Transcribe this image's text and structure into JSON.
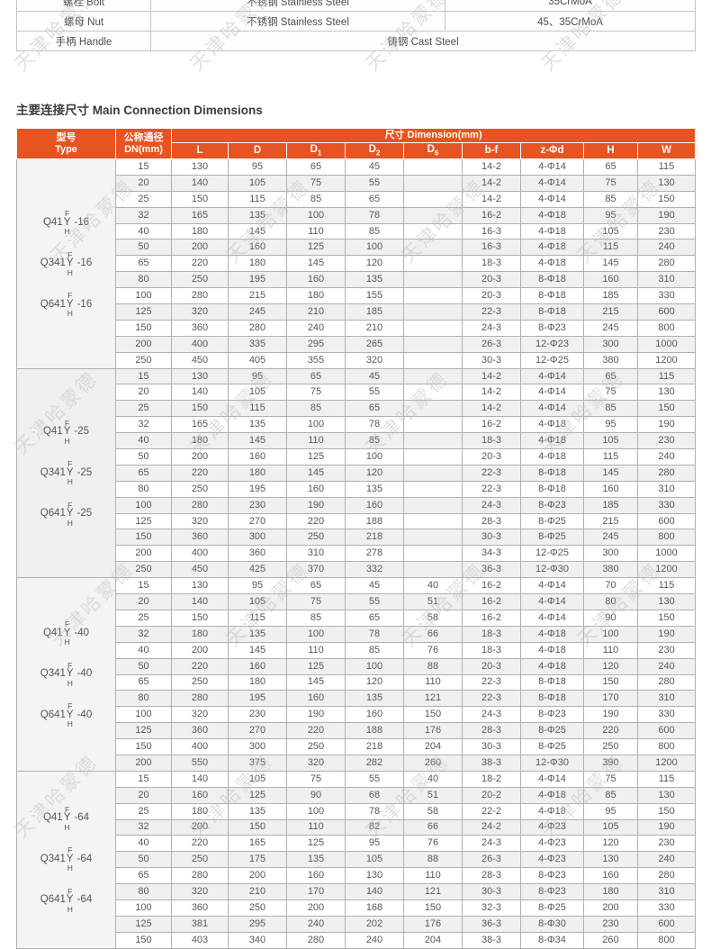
{
  "watermark": {
    "text": "天津哈蒙德"
  },
  "colors": {
    "accent_orange": "#E85322",
    "row_stripe": "#F0F0F0",
    "table_border": "#B0B0B0",
    "body_text": "#58585A",
    "watermark_gray": "#BFBFBF"
  },
  "materials": {
    "rows": [
      [
        {
          "t": "螺栓 Bolt"
        },
        {
          "t": "不锈钢 Stainless Steel"
        },
        {
          "t": "35CrMoA"
        }
      ],
      [
        {
          "t": "螺母 Nut"
        },
        {
          "t": "不锈钢 Stainless Steel"
        },
        {
          "t": "45、35CrMoA"
        }
      ],
      [
        {
          "t": "手柄 Handle"
        },
        {
          "t": "铸钢 Cast Steel",
          "colspan": 2
        }
      ]
    ]
  },
  "section_title": "主要连接尺寸 Main Connection Dimensions",
  "table": {
    "header": {
      "type_line1": "型号",
      "type_line2": "Type",
      "dn_line1": "公称通径",
      "dn_line2": "DN(mm)",
      "dimension_group": "尺寸 Dimension(mm)",
      "dims": [
        "L",
        "D",
        {
          "base": "D",
          "sub": "1"
        },
        {
          "base": "D",
          "sub": "2"
        },
        {
          "base": "D",
          "sub": "6"
        },
        "b-f",
        "z-Φd",
        "H",
        "W"
      ]
    },
    "groups": [
      {
        "models": [
          {
            "prefix": "Q41",
            "letters": [
              "F",
              "Y",
              "H"
            ],
            "suffix": "-16"
          },
          {
            "prefix": "Q341",
            "letters": [
              "F",
              "Y",
              "H"
            ],
            "suffix": "-16"
          },
          {
            "prefix": "Q641",
            "letters": [
              "F",
              "Y",
              "H"
            ],
            "suffix": "-16"
          }
        ],
        "rows": [
          {
            "dn": "15",
            "values": [
              "130",
              "95",
              "65",
              "45",
              "",
              "14-2",
              "4-Φ14",
              "65",
              "115"
            ]
          },
          {
            "dn": "20",
            "values": [
              "140",
              "105",
              "75",
              "55",
              "",
              "14-2",
              "4-Φ14",
              "75",
              "130"
            ]
          },
          {
            "dn": "25",
            "values": [
              "150",
              "115",
              "85",
              "65",
              "",
              "14-2",
              "4-Φ14",
              "85",
              "150"
            ]
          },
          {
            "dn": "32",
            "values": [
              "165",
              "135",
              "100",
              "78",
              "",
              "16-2",
              "4-Φ18",
              "95",
              "190"
            ]
          },
          {
            "dn": "40",
            "values": [
              "180",
              "145",
              "110",
              "85",
              "",
              "16-3",
              "4-Φ18",
              "105",
              "230"
            ]
          },
          {
            "dn": "50",
            "values": [
              "200",
              "160",
              "125",
              "100",
              "",
              "16-3",
              "4-Φ18",
              "115",
              "240"
            ]
          },
          {
            "dn": "65",
            "values": [
              "220",
              "180",
              "145",
              "120",
              "",
              "18-3",
              "4-Φ18",
              "145",
              "280"
            ]
          },
          {
            "dn": "80",
            "values": [
              "250",
              "195",
              "160",
              "135",
              "",
              "20-3",
              "8-Φ18",
              "160",
              "310"
            ]
          },
          {
            "dn": "100",
            "values": [
              "280",
              "215",
              "180",
              "155",
              "",
              "20-3",
              "8-Φ18",
              "185",
              "330"
            ]
          },
          {
            "dn": "125",
            "values": [
              "320",
              "245",
              "210",
              "185",
              "",
              "22-3",
              "8-Φ18",
              "215",
              "600"
            ]
          },
          {
            "dn": "150",
            "values": [
              "360",
              "280",
              "240",
              "210",
              "",
              "24-3",
              "8-Φ23",
              "245",
              "800"
            ]
          },
          {
            "dn": "200",
            "values": [
              "400",
              "335",
              "295",
              "265",
              "",
              "26-3",
              "12-Φ23",
              "300",
              "1000"
            ]
          },
          {
            "dn": "250",
            "values": [
              "450",
              "405",
              "355",
              "320",
              "",
              "30-3",
              "12-Φ25",
              "380",
              "1200"
            ]
          }
        ]
      },
      {
        "models": [
          {
            "prefix": "Q41",
            "letters": [
              "F",
              "Y",
              "H"
            ],
            "suffix": "-25"
          },
          {
            "prefix": "Q341",
            "letters": [
              "F",
              "Y",
              "H"
            ],
            "suffix": "-25"
          },
          {
            "prefix": "Q641",
            "letters": [
              "F",
              "Y",
              "H"
            ],
            "suffix": "-25"
          }
        ],
        "rows": [
          {
            "dn": "15",
            "values": [
              "130",
              "95",
              "65",
              "45",
              "",
              "14-2",
              "4-Φ14",
              "65",
              "115"
            ]
          },
          {
            "dn": "20",
            "values": [
              "140",
              "105",
              "75",
              "55",
              "",
              "14-2",
              "4-Φ14",
              "75",
              "130"
            ]
          },
          {
            "dn": "25",
            "values": [
              "150",
              "115",
              "85",
              "65",
              "",
              "14-2",
              "4-Φ14",
              "85",
              "150"
            ]
          },
          {
            "dn": "32",
            "values": [
              "165",
              "135",
              "100",
              "78",
              "",
              "16-2",
              "4-Φ18",
              "95",
              "190"
            ]
          },
          {
            "dn": "40",
            "values": [
              "180",
              "145",
              "110",
              "85",
              "",
              "18-3",
              "4-Φ18",
              "105",
              "230"
            ]
          },
          {
            "dn": "50",
            "values": [
              "200",
              "160",
              "125",
              "100",
              "",
              "20-3",
              "4-Φ18",
              "115",
              "240"
            ]
          },
          {
            "dn": "65",
            "values": [
              "220",
              "180",
              "145",
              "120",
              "",
              "22-3",
              "8-Φ18",
              "145",
              "280"
            ]
          },
          {
            "dn": "80",
            "values": [
              "250",
              "195",
              "160",
              "135",
              "",
              "22-3",
              "8-Φ18",
              "160",
              "310"
            ]
          },
          {
            "dn": "100",
            "values": [
              "280",
              "230",
              "190",
              "160",
              "",
              "24-3",
              "8-Φ23",
              "185",
              "330"
            ]
          },
          {
            "dn": "125",
            "values": [
              "320",
              "270",
              "220",
              "188",
              "",
              "28-3",
              "8-Φ25",
              "215",
              "600"
            ]
          },
          {
            "dn": "150",
            "values": [
              "360",
              "300",
              "250",
              "218",
              "",
              "30-3",
              "8-Φ25",
              "245",
              "800"
            ]
          },
          {
            "dn": "200",
            "values": [
              "400",
              "360",
              "310",
              "278",
              "",
              "34-3",
              "12-Φ25",
              "300",
              "1000"
            ]
          },
          {
            "dn": "250",
            "values": [
              "450",
              "425",
              "370",
              "332",
              "",
              "36-3",
              "12-Φ30",
              "380",
              "1200"
            ]
          }
        ]
      },
      {
        "models": [
          {
            "prefix": "Q41",
            "letters": [
              "F",
              "Y",
              "H"
            ],
            "suffix": "-40"
          },
          {
            "prefix": "Q341",
            "letters": [
              "F",
              "Y",
              "H"
            ],
            "suffix": "-40"
          },
          {
            "prefix": "Q641",
            "letters": [
              "F",
              "Y",
              "H"
            ],
            "suffix": "-40"
          }
        ],
        "rows": [
          {
            "dn": "15",
            "values": [
              "130",
              "95",
              "65",
              "45",
              "40",
              "16-2",
              "4-Φ14",
              "70",
              "115"
            ]
          },
          {
            "dn": "20",
            "values": [
              "140",
              "105",
              "75",
              "55",
              "51",
              "16-2",
              "4-Φ14",
              "80",
              "130"
            ]
          },
          {
            "dn": "25",
            "values": [
              "150",
              "115",
              "85",
              "65",
              "58",
              "16-2",
              "4-Φ14",
              "90",
              "150"
            ]
          },
          {
            "dn": "32",
            "values": [
              "180",
              "135",
              "100",
              "78",
              "66",
              "18-3",
              "4-Φ18",
              "100",
              "190"
            ]
          },
          {
            "dn": "40",
            "values": [
              "200",
              "145",
              "110",
              "85",
              "76",
              "18-3",
              "4-Φ18",
              "110",
              "230"
            ]
          },
          {
            "dn": "50",
            "values": [
              "220",
              "160",
              "125",
              "100",
              "88",
              "20-3",
              "4-Φ18",
              "120",
              "240"
            ]
          },
          {
            "dn": "65",
            "values": [
              "250",
              "180",
              "145",
              "120",
              "110",
              "22-3",
              "8-Φ18",
              "150",
              "280"
            ]
          },
          {
            "dn": "80",
            "values": [
              "280",
              "195",
              "160",
              "135",
              "121",
              "22-3",
              "8-Φ18",
              "170",
              "310"
            ]
          },
          {
            "dn": "100",
            "values": [
              "320",
              "230",
              "190",
              "160",
              "150",
              "24-3",
              "8-Φ23",
              "190",
              "330"
            ]
          },
          {
            "dn": "125",
            "values": [
              "360",
              "270",
              "220",
              "188",
              "176",
              "28-3",
              "8-Φ25",
              "220",
              "600"
            ]
          },
          {
            "dn": "150",
            "values": [
              "400",
              "300",
              "250",
              "218",
              "204",
              "30-3",
              "8-Φ25",
              "250",
              "800"
            ]
          },
          {
            "dn": "200",
            "values": [
              "550",
              "375",
              "320",
              "282",
              "260",
              "38-3",
              "12-Φ30",
              "390",
              "1200"
            ]
          }
        ]
      },
      {
        "models": [
          {
            "prefix": "Q41",
            "letters": [
              "F",
              "Y",
              "H"
            ],
            "suffix": "-64"
          },
          {
            "prefix": "Q341",
            "letters": [
              "F",
              "Y",
              "H"
            ],
            "suffix": "-64"
          },
          {
            "prefix": "Q641",
            "letters": [
              "F",
              "Y",
              "H"
            ],
            "suffix": "-64"
          }
        ],
        "rows": [
          {
            "dn": "15",
            "values": [
              "140",
              "105",
              "75",
              "55",
              "40",
              "18-2",
              "4-Φ14",
              "75",
              "115"
            ]
          },
          {
            "dn": "20",
            "values": [
              "160",
              "125",
              "90",
              "68",
              "51",
              "20-2",
              "4-Φ18",
              "85",
              "130"
            ]
          },
          {
            "dn": "25",
            "values": [
              "180",
              "135",
              "100",
              "78",
              "58",
              "22-2",
              "4-Φ18",
              "95",
              "150"
            ]
          },
          {
            "dn": "32",
            "values": [
              "200",
              "150",
              "110",
              "82",
              "66",
              "24-2",
              "4-Φ23",
              "105",
              "190"
            ]
          },
          {
            "dn": "40",
            "values": [
              "220",
              "165",
              "125",
              "95",
              "76",
              "24-3",
              "4-Φ23",
              "120",
              "230"
            ]
          },
          {
            "dn": "50",
            "values": [
              "250",
              "175",
              "135",
              "105",
              "88",
              "26-3",
              "4-Φ23",
              "130",
              "240"
            ]
          },
          {
            "dn": "65",
            "values": [
              "280",
              "200",
              "160",
              "130",
              "110",
              "28-3",
              "8-Φ23",
              "160",
              "280"
            ]
          },
          {
            "dn": "80",
            "values": [
              "320",
              "210",
              "170",
              "140",
              "121",
              "30-3",
              "8-Φ23",
              "180",
              "310"
            ]
          },
          {
            "dn": "100",
            "values": [
              "360",
              "250",
              "200",
              "168",
              "150",
              "32-3",
              "8-Φ25",
              "200",
              "330"
            ]
          },
          {
            "dn": "125",
            "values": [
              "381",
              "295",
              "240",
              "202",
              "176",
              "36-3",
              "8-Φ30",
              "230",
              "600"
            ]
          },
          {
            "dn": "150",
            "values": [
              "403",
              "340",
              "280",
              "240",
              "204",
              "38-3",
              "8-Φ34",
              "260",
              "800"
            ]
          }
        ]
      }
    ]
  }
}
